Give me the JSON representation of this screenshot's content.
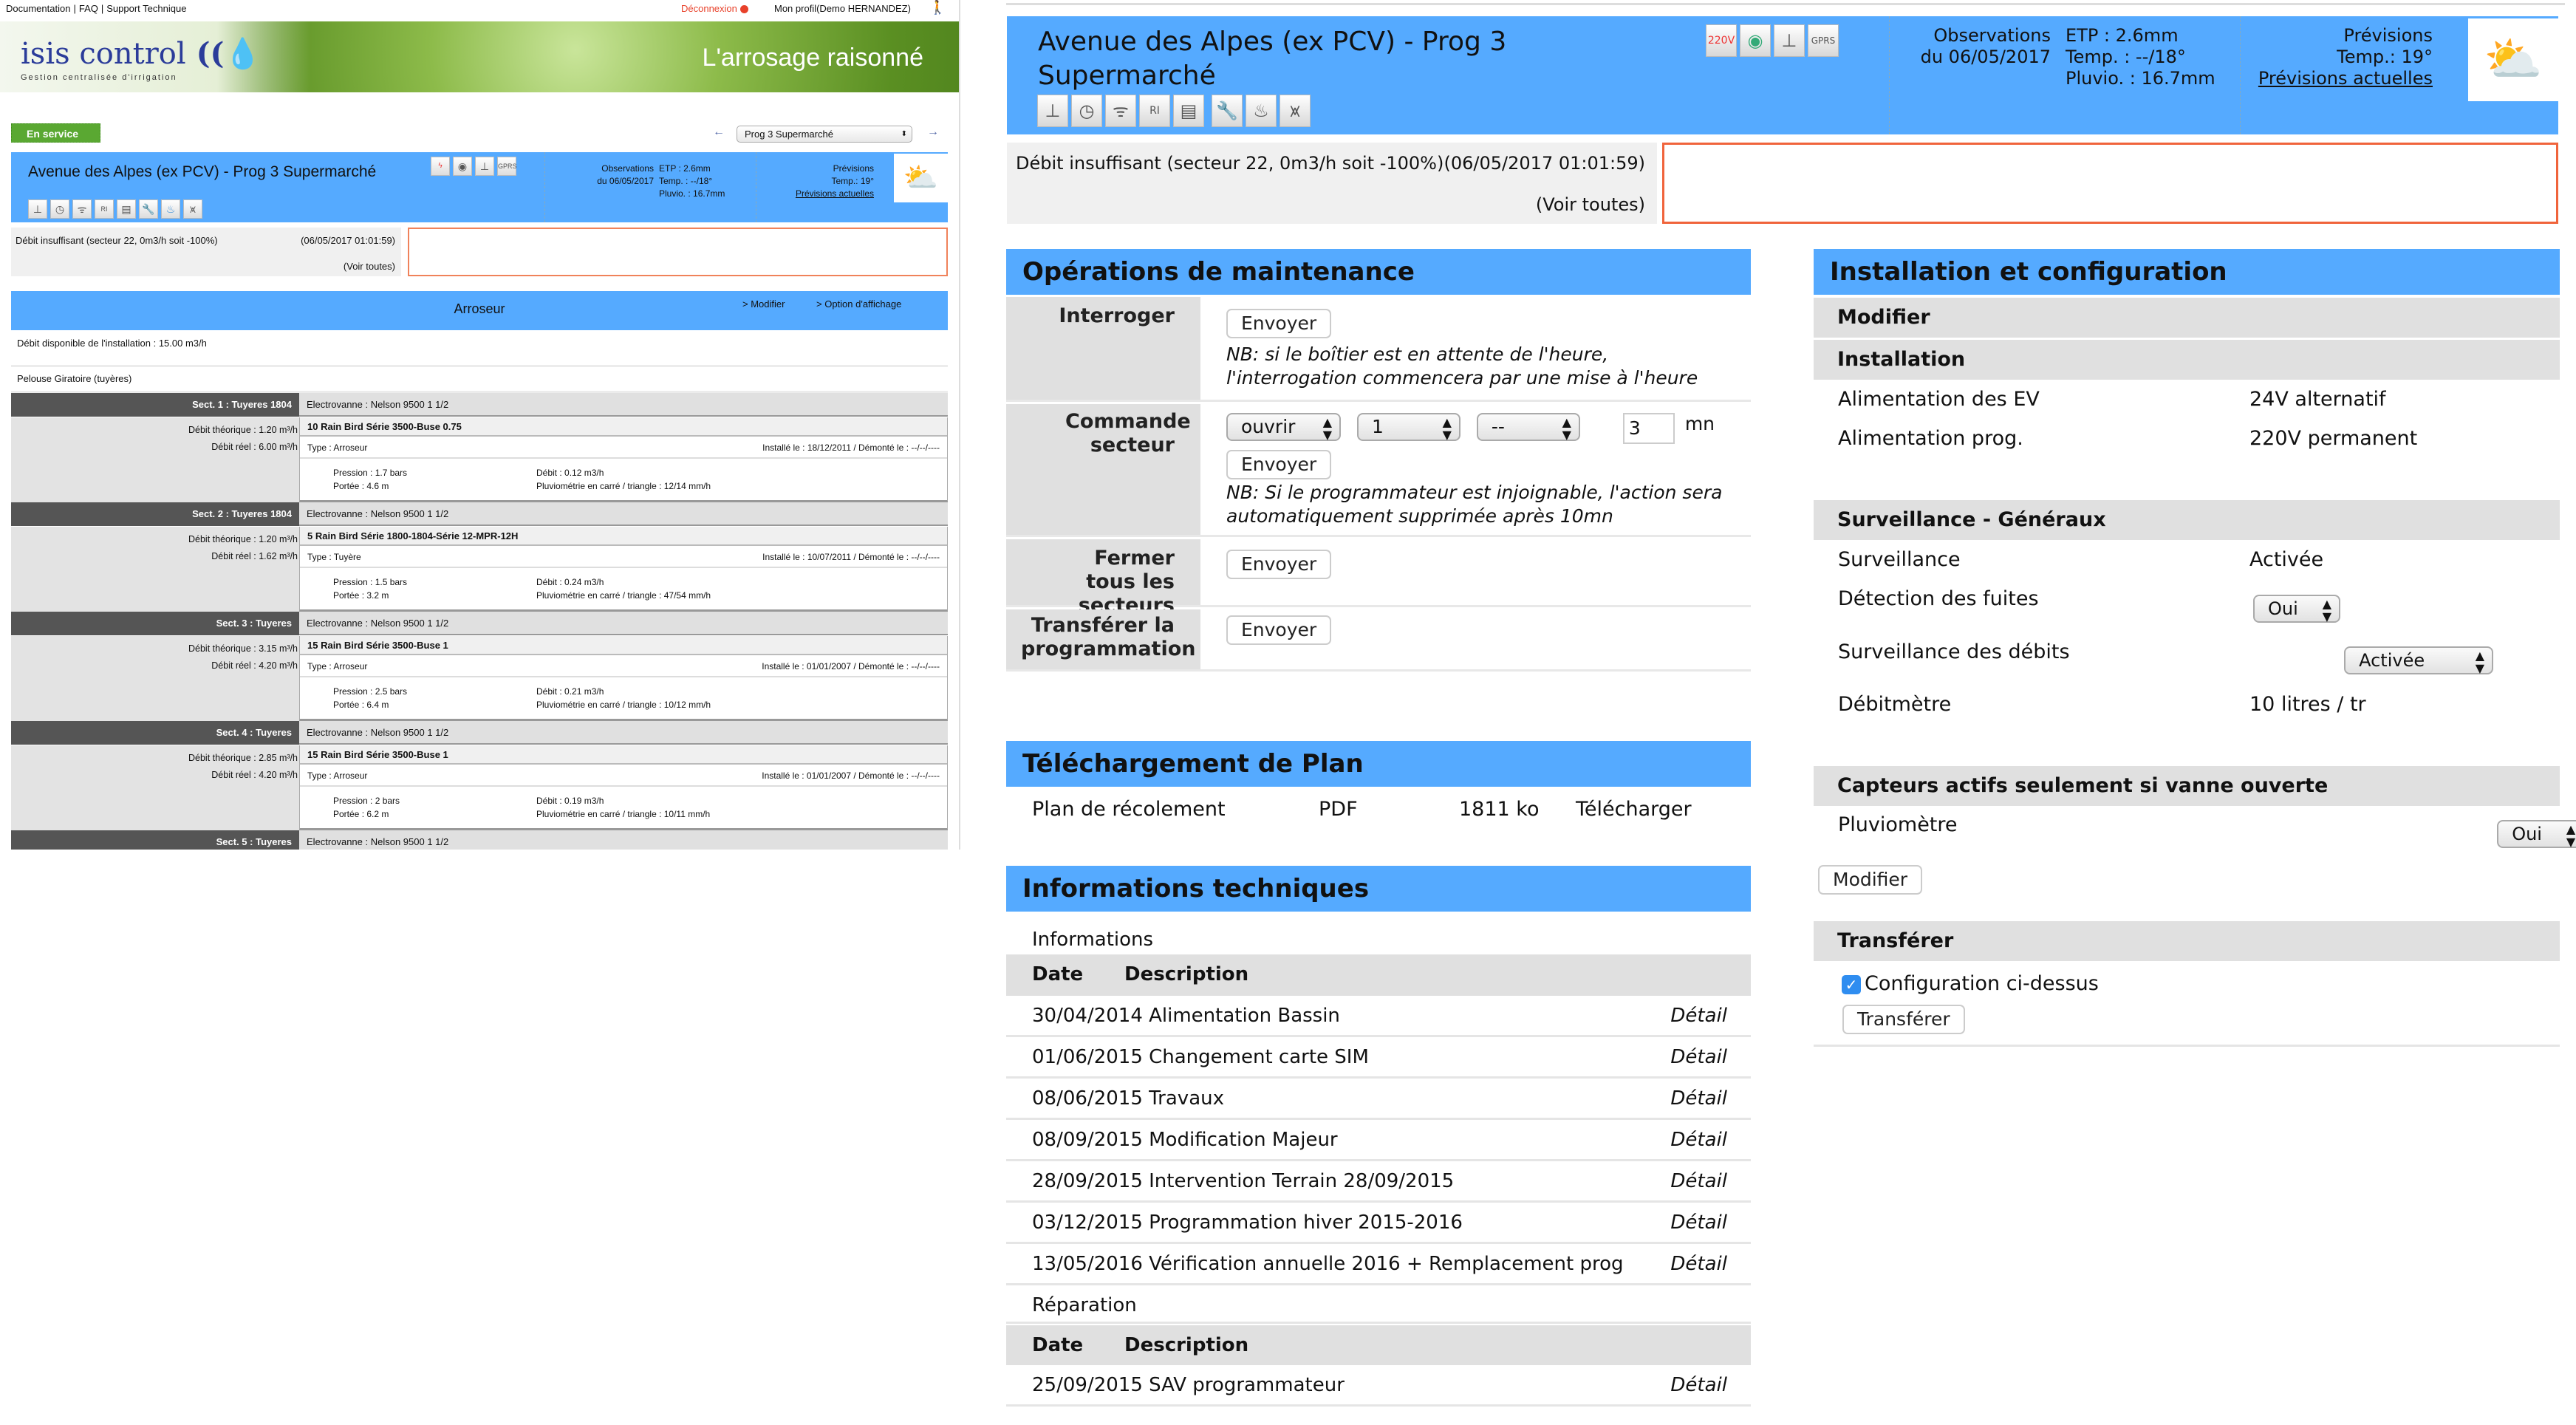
{
  "colors": {
    "accent_blue": "#55aaff",
    "status_green": "#5aa832",
    "alert_red": "#f0643c",
    "sector_dark": "#555555"
  },
  "left": {
    "top_links": [
      "Documentation",
      "|",
      "FAQ",
      "|",
      "Support Technique"
    ],
    "logout": "Déconnexion",
    "profile": "Mon profil(Demo HERNANDEZ)",
    "logo_text": "isis control",
    "logo_tagline": "Gestion centralisée d'irrigation",
    "slogan": "L'arrosage raisonné",
    "status": "En service",
    "prog_select": "Prog 3 Supermarché",
    "title": "Avenue des Alpes (ex PCV) - Prog 3 Supermarché",
    "obs": {
      "label1": "Observations",
      "label2": "du 06/05/2017",
      "etp": "ETP : 2.6mm",
      "temp": "Temp. : --/18°",
      "pluvio": "Pluvio. : 16.7mm"
    },
    "prev": {
      "label": "Prévisions",
      "temp": "Temp.: 19°",
      "link": "Prévisions actuelles"
    },
    "alert": {
      "text": "Débit insuffisant (secteur 22, 0m3/h soit -100%)",
      "date": "(06/05/2017 01:01:59)",
      "all": "(Voir toutes)"
    },
    "arroseur": {
      "title": "Arroseur",
      "modify": "> Modifier",
      "options": "> Option d'affichage",
      "debit_dispo": "Débit disponible de l'installation : 15.00 m3/h",
      "zone": "Pelouse Giratoire (tuyères)"
    },
    "sectors": [
      {
        "name": "Sect. 1 : Tuyeres 1804",
        "ev": "Electrovanne : Nelson 9500 1 1/2",
        "dth": "Débit théorique : 1.20 m³/h",
        "dreel": "Débit réel : 6.00 m³/h",
        "model": "10 Rain Bird Série 3500-Buse 0.75",
        "type": "Type : Arroseur",
        "install": "Installé le : 18/12/2011 / Démonté le : --/--/----",
        "pression": "Pression : 1.7 bars",
        "portee": "Portée : 4.6 m",
        "debit": "Débit : 0.12 m3/h",
        "pluvio": "Pluviométrie en carré / triangle : 12/14 mm/h"
      },
      {
        "name": "Sect. 2 : Tuyeres 1804",
        "ev": "Electrovanne : Nelson 9500 1 1/2",
        "dth": "Débit théorique : 1.20 m³/h",
        "dreel": "Débit réel : 1.62 m³/h",
        "model": "5 Rain Bird Série 1800-1804-Série 12-MPR-12H",
        "type": "Type : Tuyère",
        "install": "Installé le : 10/07/2011 / Démonté le : --/--/----",
        "pression": "Pression : 1.5 bars",
        "portee": "Portée : 3.2 m",
        "debit": "Débit : 0.24 m3/h",
        "pluvio": "Pluviométrie en carré / triangle : 47/54 mm/h"
      },
      {
        "name": "Sect. 3 : Tuyeres",
        "ev": "Electrovanne : Nelson 9500 1 1/2",
        "dth": "Débit théorique : 3.15 m³/h",
        "dreel": "Débit réel : 4.20 m³/h",
        "model": "15 Rain Bird Série 3500-Buse 1",
        "type": "Type : Arroseur",
        "install": "Installé le : 01/01/2007 / Démonté le : --/--/----",
        "pression": "Pression : 2.5 bars",
        "portee": "Portée : 6.4 m",
        "debit": "Débit : 0.21 m3/h",
        "pluvio": "Pluviométrie en carré / triangle : 10/12 mm/h"
      },
      {
        "name": "Sect. 4 : Tuyeres",
        "ev": "Electrovanne : Nelson 9500 1 1/2",
        "dth": "Débit théorique : 2.85 m³/h",
        "dreel": "Débit réel : 4.20 m³/h",
        "model": "15 Rain Bird Série 3500-Buse 1",
        "type": "Type : Arroseur",
        "install": "Installé le : 01/01/2007 / Démonté le : --/--/----",
        "pression": "Pression : 2 bars",
        "portee": "Portée : 6.2 m",
        "debit": "Débit : 0.19 m3/h",
        "pluvio": "Pluviométrie en carré / triangle : 10/11 mm/h"
      },
      {
        "name": "Sect. 5 : Tuyeres",
        "ev": "Electrovanne : Nelson 9500 1 1/2"
      }
    ]
  },
  "right": {
    "title": "Avenue des Alpes (ex PCV) - Prog 3 Supermarché",
    "top_icons": [
      "power-220v-icon",
      "eye-icon",
      "transmitter-icon",
      "gprs-icon"
    ],
    "bottom_icons": [
      "programmer-icon",
      "clock-icon",
      "wifi-icon",
      "ri-list-icon",
      "table-icon",
      "wrench-icon",
      "water-drop-icon",
      "chart-icon"
    ],
    "obs": {
      "label1": "Observations",
      "label2": "du 06/05/2017",
      "etp": "ETP : 2.6mm",
      "temp": "Temp. : --/18°",
      "pluvio": "Pluvio. : 16.7mm"
    },
    "prev": {
      "label": "Prévisions",
      "temp": "Temp.: 19°",
      "link": "Prévisions actuelles"
    },
    "alert": {
      "text": "Débit insuffisant (secteur 22, 0m3/h soit -100%)",
      "date": "(06/05/2017 01:01:59)",
      "all": "(Voir toutes)"
    },
    "maintenance": {
      "title": "Opérations de maintenance",
      "send": "Envoyer",
      "interroger": "Interroger",
      "interroger_nb": "NB: si le boîtier est en attente de l'heure, l'interrogation commencera par une mise à l'heure",
      "commande": "Commande secteur",
      "cmd_action": "ouvrir",
      "cmd_sector": "1",
      "cmd_extra": "--",
      "cmd_duration": "3",
      "cmd_unit": "mn",
      "commande_nb": "NB: Si le programmateur est injoignable, l'action sera automatiquement supprimée après 10mn",
      "fermer": "Fermer tous les secteurs",
      "transferer": "Transférer la programmation"
    },
    "plan": {
      "title": "Téléchargement de Plan",
      "name": "Plan de récolement",
      "format": "PDF",
      "size": "1811 ko",
      "download": "Télécharger"
    },
    "tech": {
      "title": "Informations techniques",
      "info_label": "Informations",
      "col_date": "Date",
      "col_desc": "Description",
      "detail": "Détail",
      "infos": [
        "30/04/2014 Alimentation Bassin",
        "01/06/2015 Changement carte SIM",
        "08/06/2015 Travaux",
        "08/09/2015 Modification Majeur",
        "28/09/2015 Intervention Terrain 28/09/2015",
        "03/12/2015 Programmation hiver 2015-2016",
        "13/05/2016 Vérification annuelle 2016 + Remplacement prog"
      ],
      "repair_label": "Réparation",
      "repairs": [
        "25/09/2015 SAV programmateur"
      ]
    },
    "config": {
      "title": "Installation et configuration",
      "modify": "Modifier",
      "installation": "Installation",
      "alim_ev_label": "Alimentation des EV",
      "alim_ev": "24V alternatif",
      "alim_prog_label": "Alimentation prog.",
      "alim_prog": "220V permanent",
      "surv_gen": "Surveillance - Généraux",
      "surv_label": "Surveillance",
      "surv": "Activée",
      "fuites_label": "Détection des fuites",
      "fuites": "Oui",
      "debits_label": "Surveillance des débits",
      "debits": "Activée",
      "debitmetre_label": "Débitmètre",
      "debitmetre": "10 litres / tr",
      "capteurs": "Capteurs actifs seulement si vanne ouverte",
      "pluvio_label": "Pluviomètre",
      "pluvio": "Oui",
      "modify_btn": "Modifier",
      "transfer": "Transférer",
      "transfer_check_label": "Configuration ci-dessus",
      "transfer_checked": true,
      "transfer_btn": "Transférer"
    }
  }
}
